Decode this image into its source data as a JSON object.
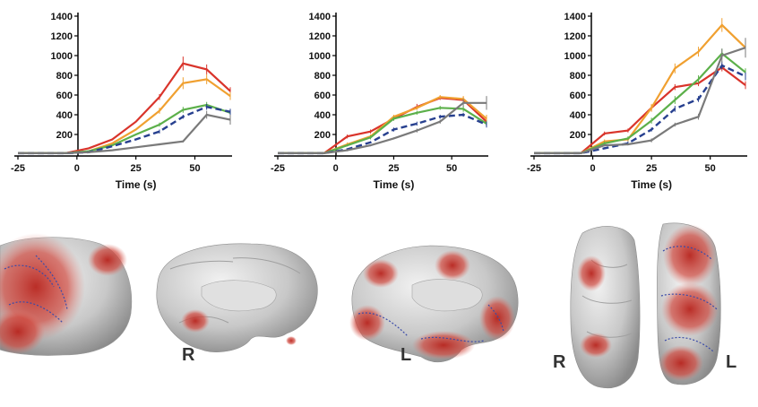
{
  "colors": {
    "red": "#d9342b",
    "orange": "#f0a030",
    "green": "#5cb04a",
    "navy": "#27408f",
    "gray": "#7a7a7a",
    "activation": "#c8342b",
    "cortex": "#c9c9c9",
    "contour": "#3a4ba8"
  },
  "chart_data": [
    {
      "type": "line",
      "xlabel": "Time (s)",
      "ylabel": "",
      "xlim": [
        -25,
        65
      ],
      "ylim": [
        0,
        1400
      ],
      "xticks": [
        "-25",
        "0",
        "25",
        "50"
      ],
      "yticks": [
        "200",
        "400",
        "600",
        "800",
        "1000",
        "1200",
        "1400"
      ],
      "x": [
        -25,
        -15,
        -5,
        5,
        15,
        25,
        35,
        45,
        55,
        65
      ],
      "series": [
        {
          "color": "red",
          "dash": false,
          "values": [
            10,
            10,
            10,
            60,
            150,
            330,
            580,
            920,
            860,
            640
          ],
          "err": [
            0,
            0,
            0,
            0,
            0,
            0,
            30,
            70,
            50,
            40
          ]
        },
        {
          "color": "orange",
          "dash": false,
          "values": [
            10,
            10,
            10,
            30,
            110,
            250,
            440,
            720,
            760,
            590
          ],
          "err": [
            0,
            0,
            0,
            0,
            0,
            0,
            30,
            60,
            50,
            40
          ]
        },
        {
          "color": "green",
          "dash": false,
          "values": [
            10,
            10,
            10,
            30,
            90,
            200,
            300,
            450,
            500,
            420
          ],
          "err": [
            0,
            0,
            0,
            0,
            0,
            0,
            20,
            30,
            30,
            30
          ]
        },
        {
          "color": "navy",
          "dash": true,
          "values": [
            10,
            10,
            10,
            20,
            80,
            150,
            230,
            380,
            480,
            430
          ],
          "err": [
            0,
            0,
            0,
            0,
            0,
            0,
            20,
            20,
            30,
            30
          ]
        },
        {
          "color": "gray",
          "dash": false,
          "values": [
            10,
            10,
            10,
            20,
            40,
            70,
            100,
            130,
            400,
            350
          ],
          "err": [
            0,
            0,
            0,
            0,
            0,
            0,
            10,
            10,
            40,
            50
          ]
        }
      ]
    },
    {
      "type": "line",
      "xlabel": "Time (s)",
      "ylabel": "",
      "xlim": [
        -25,
        65
      ],
      "ylim": [
        0,
        1400
      ],
      "xticks": [
        "-25",
        "0",
        "25",
        "50"
      ],
      "yticks": [
        "200",
        "400",
        "600",
        "800",
        "1000",
        "1200",
        "1400"
      ],
      "x": [
        -25,
        -15,
        -5,
        5,
        15,
        25,
        35,
        45,
        55,
        65
      ],
      "series": [
        {
          "color": "red",
          "dash": false,
          "values": [
            10,
            10,
            10,
            180,
            230,
            360,
            480,
            570,
            550,
            330
          ],
          "err": [
            0,
            0,
            0,
            20,
            20,
            20,
            30,
            20,
            30,
            40
          ]
        },
        {
          "color": "orange",
          "dash": false,
          "values": [
            10,
            10,
            10,
            100,
            180,
            380,
            470,
            580,
            560,
            360
          ],
          "err": [
            0,
            0,
            0,
            20,
            20,
            20,
            20,
            20,
            30,
            40
          ]
        },
        {
          "color": "green",
          "dash": false,
          "values": [
            10,
            10,
            10,
            90,
            170,
            360,
            420,
            470,
            460,
            310
          ],
          "err": [
            0,
            0,
            0,
            10,
            20,
            20,
            20,
            20,
            30,
            30
          ]
        },
        {
          "color": "navy",
          "dash": true,
          "values": [
            10,
            10,
            10,
            50,
            120,
            250,
            310,
            380,
            400,
            300
          ],
          "err": [
            0,
            0,
            0,
            10,
            10,
            20,
            20,
            20,
            20,
            30
          ]
        },
        {
          "color": "gray",
          "dash": false,
          "values": [
            10,
            10,
            10,
            40,
            90,
            160,
            240,
            330,
            520,
            520
          ],
          "err": [
            0,
            0,
            0,
            10,
            10,
            10,
            20,
            20,
            40,
            70
          ]
        }
      ]
    },
    {
      "type": "line",
      "xlabel": "Time (s)",
      "ylabel": "",
      "xlim": [
        -25,
        65
      ],
      "ylim": [
        0,
        1400
      ],
      "xticks": [
        "-25",
        "0",
        "25",
        "50"
      ],
      "yticks": [
        "200",
        "400",
        "600",
        "800",
        "1000",
        "1200",
        "1400"
      ],
      "x": [
        -25,
        -15,
        -5,
        5,
        15,
        25,
        35,
        45,
        55,
        65
      ],
      "series": [
        {
          "color": "red",
          "dash": false,
          "values": [
            10,
            10,
            10,
            210,
            240,
            470,
            680,
            720,
            880,
            700
          ],
          "err": [
            0,
            0,
            0,
            20,
            20,
            30,
            30,
            30,
            40,
            40
          ]
        },
        {
          "color": "orange",
          "dash": false,
          "values": [
            10,
            10,
            10,
            130,
            150,
            470,
            870,
            1040,
            1310,
            1080
          ],
          "err": [
            0,
            0,
            0,
            20,
            20,
            40,
            50,
            50,
            70,
            60
          ]
        },
        {
          "color": "green",
          "dash": false,
          "values": [
            10,
            10,
            10,
            110,
            160,
            340,
            550,
            760,
            1020,
            830
          ],
          "err": [
            0,
            0,
            0,
            20,
            20,
            30,
            40,
            40,
            50,
            40
          ]
        },
        {
          "color": "navy",
          "dash": true,
          "values": [
            10,
            10,
            10,
            60,
            110,
            250,
            460,
            560,
            900,
            790
          ],
          "err": [
            0,
            0,
            0,
            10,
            20,
            20,
            30,
            30,
            40,
            40
          ]
        },
        {
          "color": "gray",
          "dash": false,
          "values": [
            10,
            10,
            10,
            90,
            100,
            140,
            300,
            380,
            1000,
            1080
          ],
          "err": [
            0,
            0,
            0,
            10,
            10,
            20,
            20,
            30,
            70,
            100
          ]
        }
      ]
    }
  ],
  "brain_labels": {
    "view2": "R",
    "view3": "L",
    "view4": "R",
    "view5": "L"
  }
}
